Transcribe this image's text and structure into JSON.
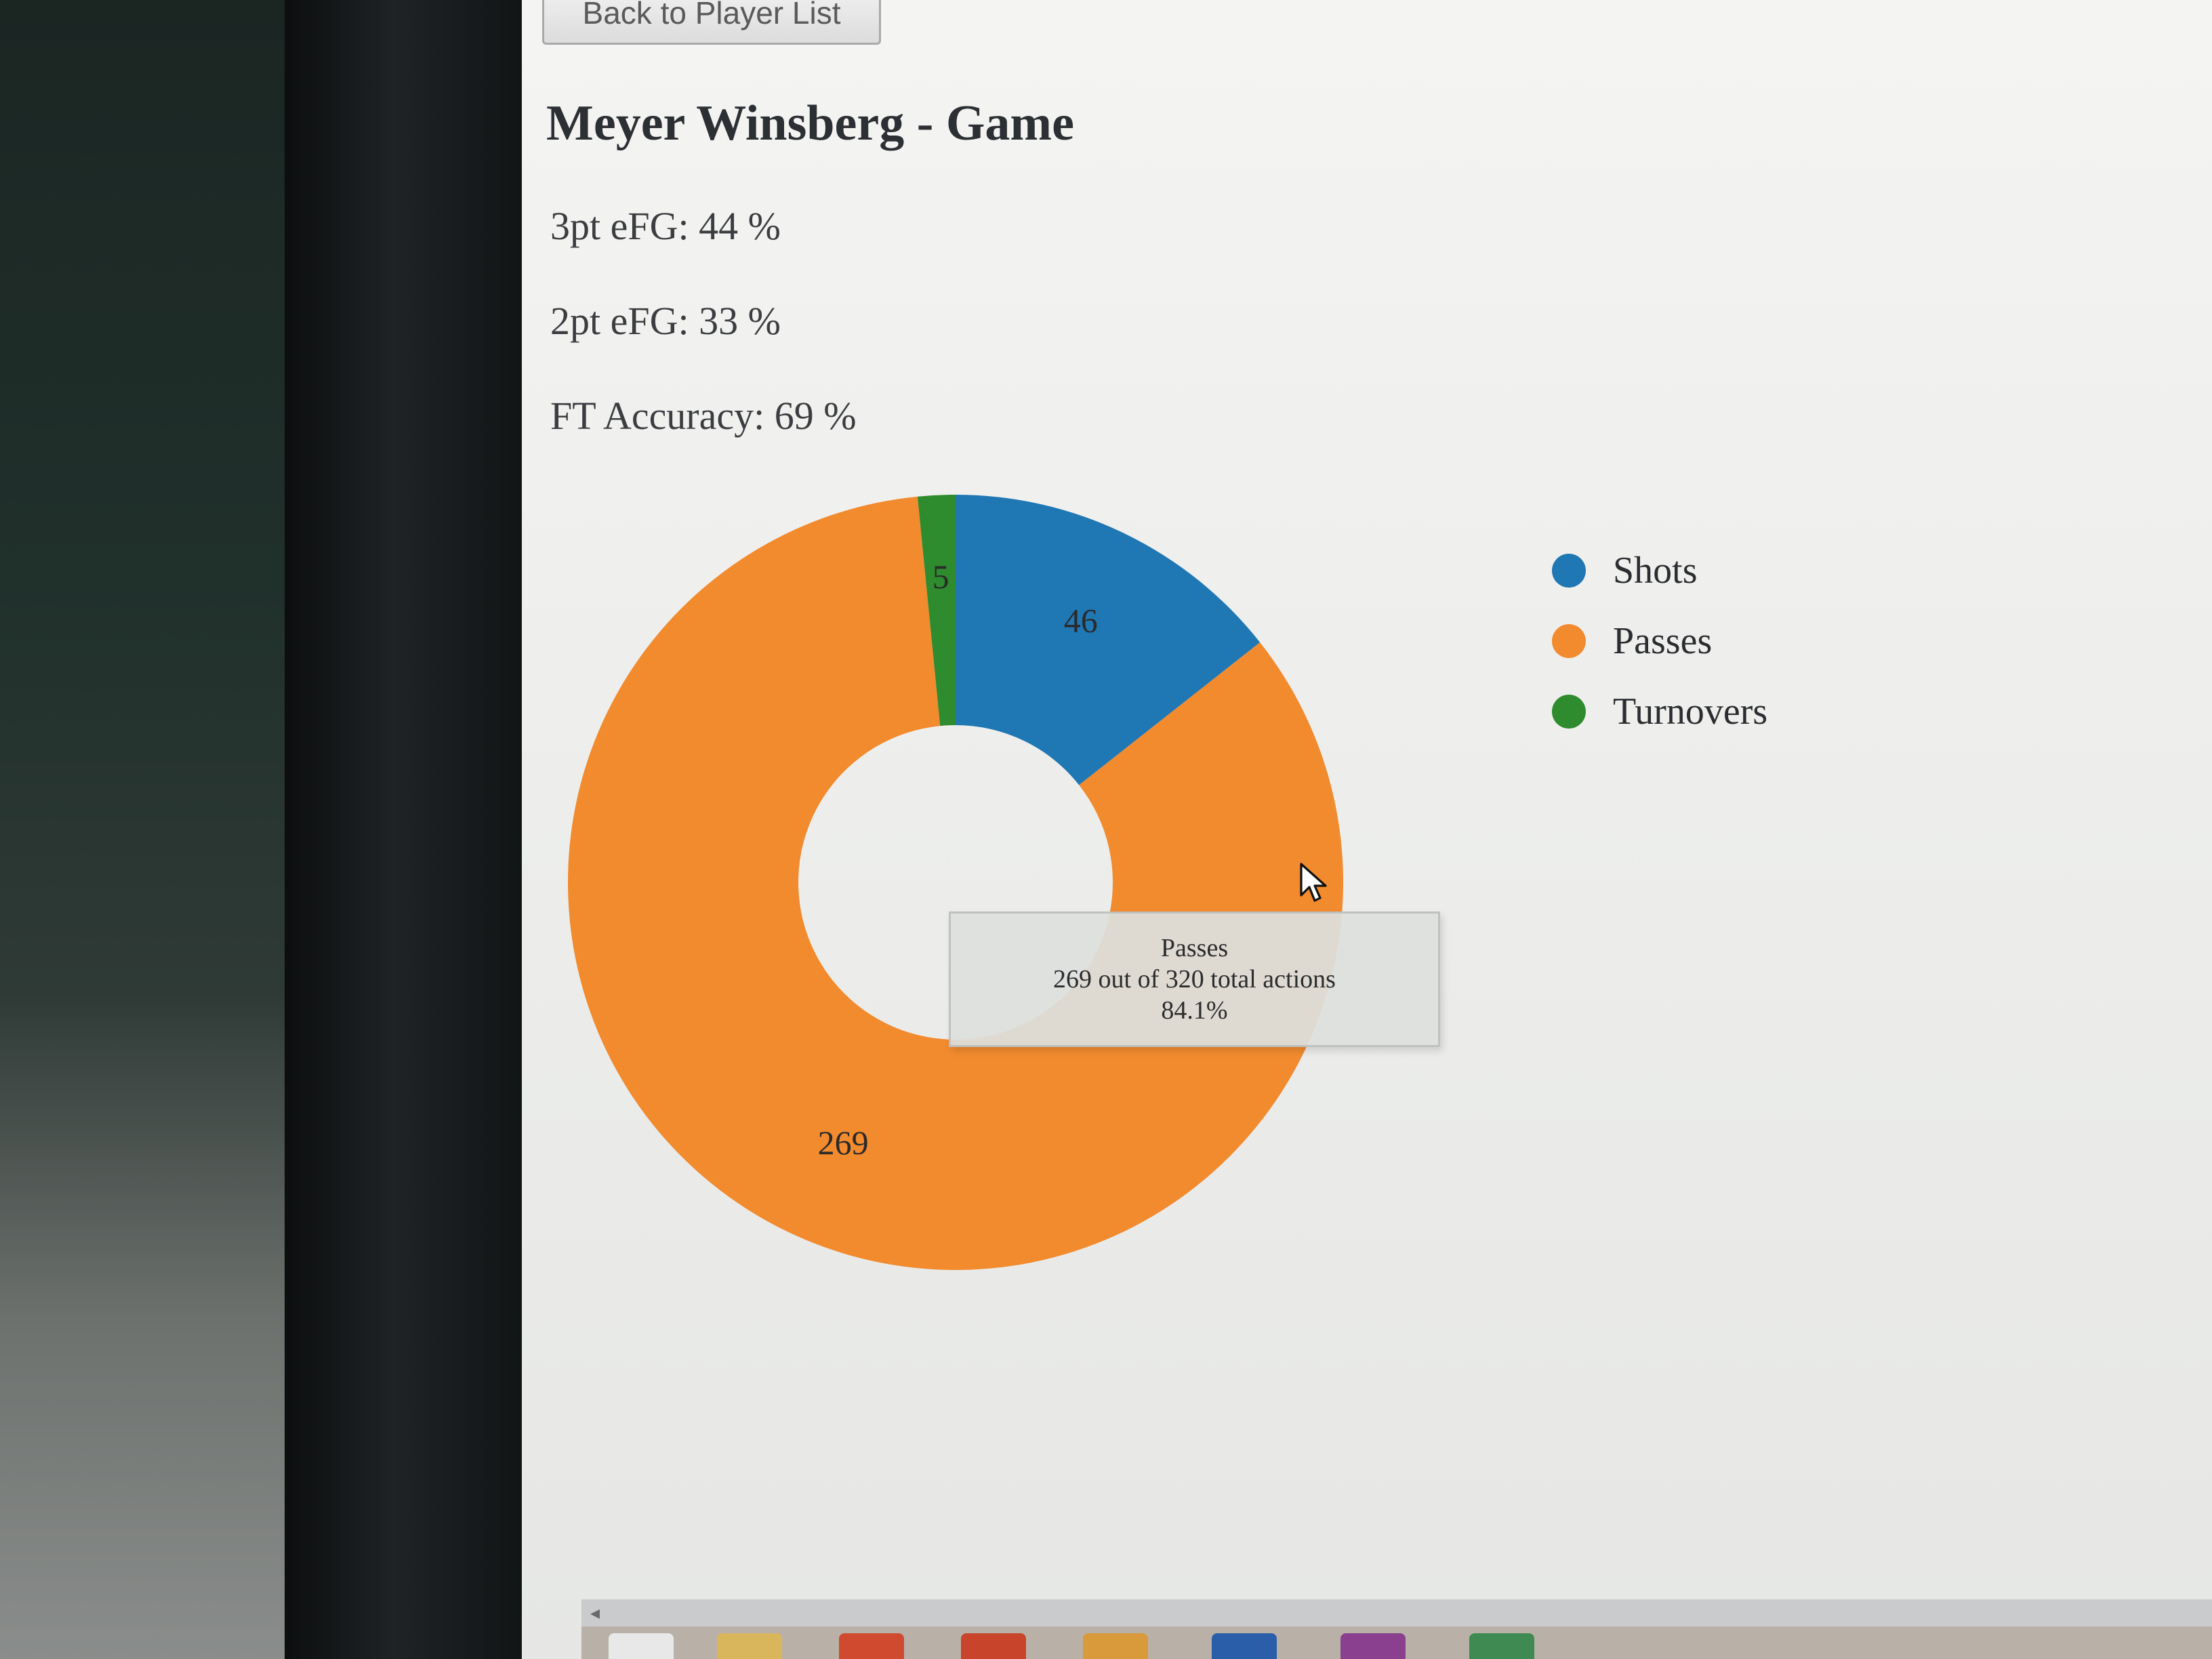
{
  "nav": {
    "back_label": "Back to Player List"
  },
  "page": {
    "title": "Meyer Winsberg - Game"
  },
  "stats": [
    {
      "text": "3pt eFG: 44 %"
    },
    {
      "text": "2pt eFG: 33 %"
    },
    {
      "text": "FT Accuracy: 69 %"
    }
  ],
  "colors": {
    "shots": "#1f77b4",
    "passes": "#f28a2e",
    "turnovers": "#2e8b2e"
  },
  "chart_data": {
    "type": "pie",
    "donut": true,
    "categories": [
      "Shots",
      "Passes",
      "Turnovers"
    ],
    "values": [
      46,
      269,
      5
    ],
    "data_labels": [
      "46",
      "269",
      "5"
    ],
    "colors": [
      "#1f77b4",
      "#f28a2e",
      "#2e8b2e"
    ],
    "legend_position": "right"
  },
  "tooltip": {
    "title": "Passes",
    "detail": "269 out of 320 total actions",
    "percent": "84.1%"
  },
  "icons": {
    "cursor": "mouse-pointer-icon",
    "scroll_left": "scroll-left-arrow-icon"
  }
}
